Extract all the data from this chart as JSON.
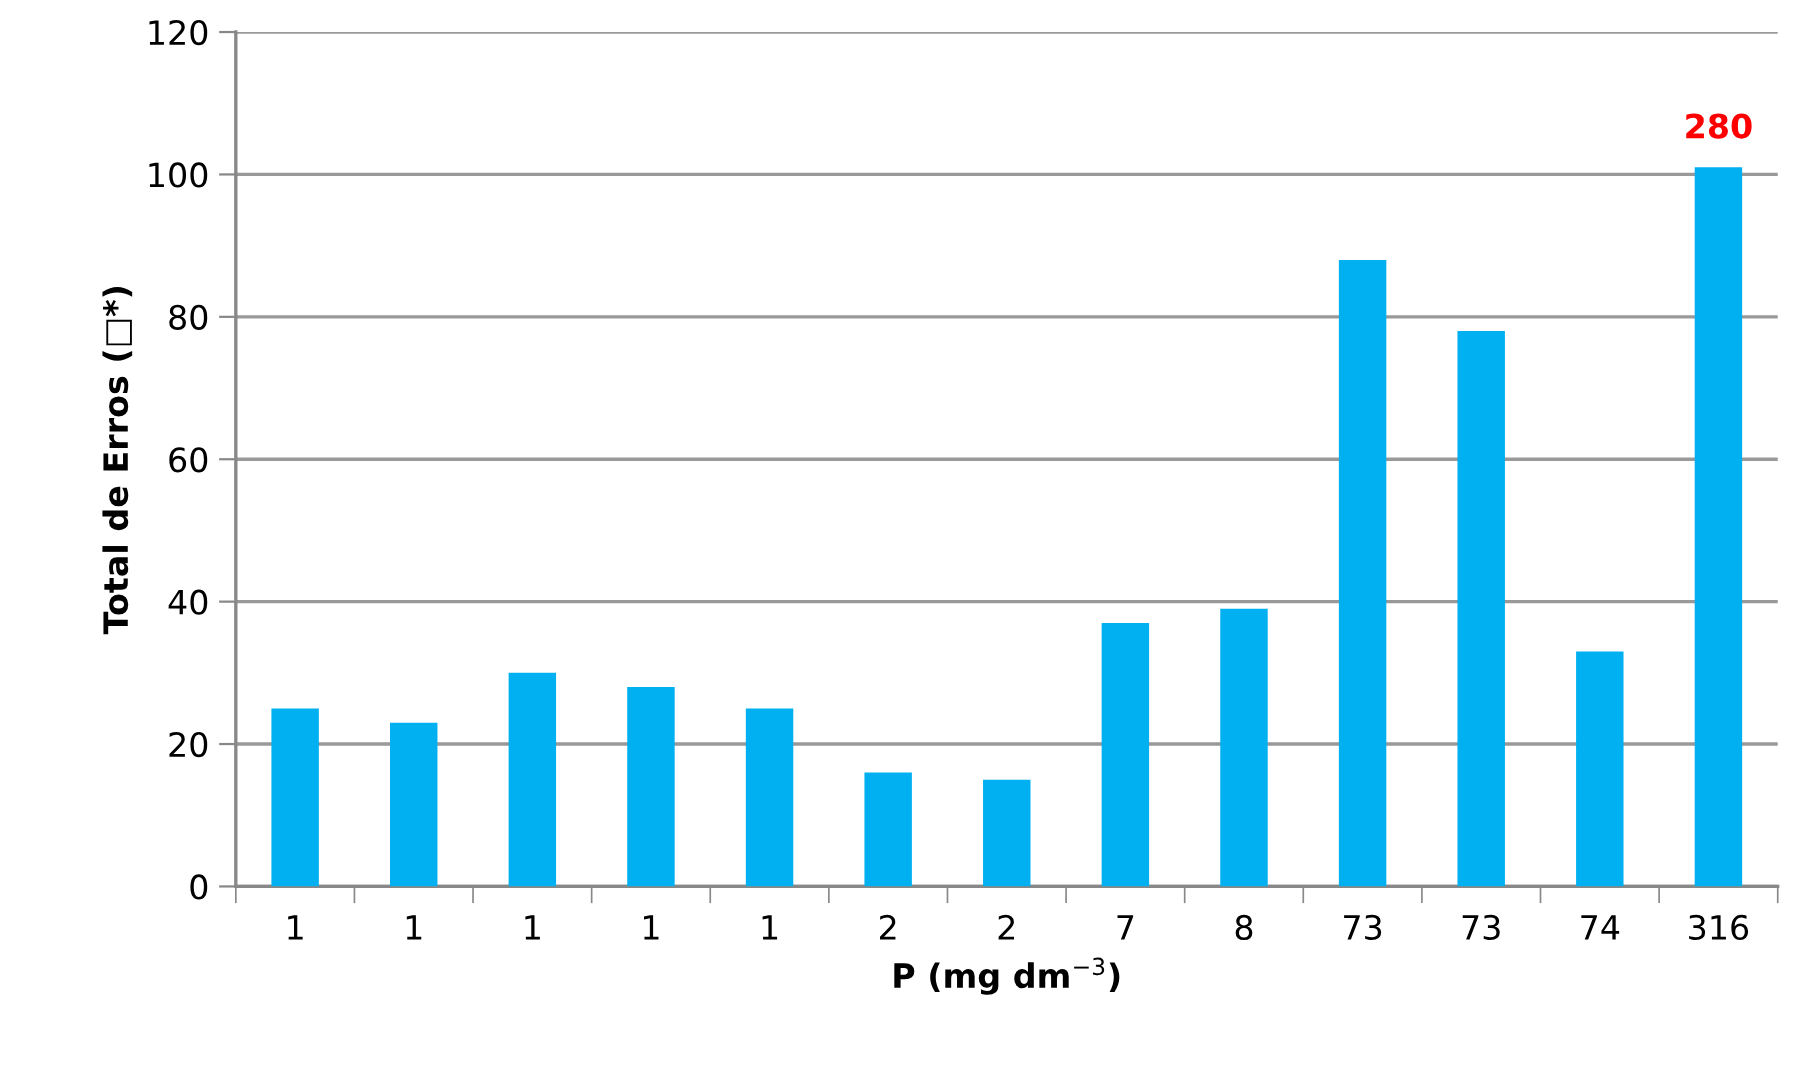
{
  "chart_data": {
    "type": "bar",
    "xlabel": "P (mg dm$^{−3}$)",
    "ylabel": "Total de Erros (□*)",
    "categories": [
      "1",
      "1",
      "1",
      "1",
      "1",
      "2",
      "2",
      "7",
      "8",
      "73",
      "73",
      "74",
      "316"
    ],
    "series": [
      {
        "color": "#00b0f0",
        "values": [
          25,
          23,
          30,
          28,
          25,
          16,
          15,
          37,
          39,
          88,
          78,
          33,
          101
        ]
      }
    ],
    "annotations": [
      {
        "text": "280",
        "x": "316",
        "y": 101
      }
    ],
    "ylim": [
      0,
      120
    ],
    "yticks": [
      0,
      20,
      40,
      60,
      80,
      100,
      120
    ],
    "grid": "y",
    "legend": false
  }
}
